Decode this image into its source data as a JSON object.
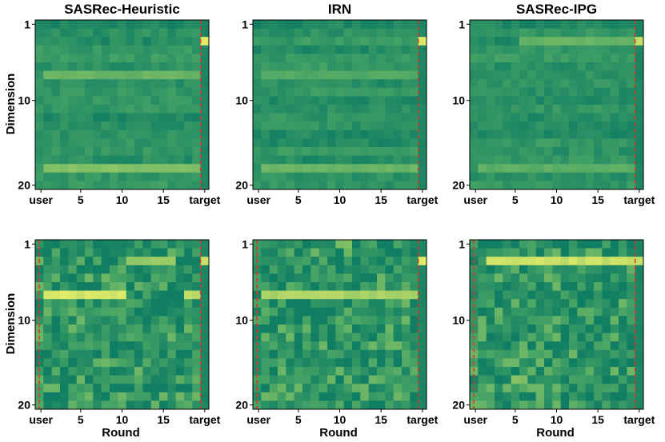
{
  "colors": {
    "colormap_low": "#0e7c63",
    "colormap_mid": "#4aa665",
    "colormap_high": "#f5f569",
    "marker_line": "#e8302a",
    "frame": "#000000"
  },
  "chart_data": {
    "type": "heatmap",
    "figure": "Heatmap grid: embedding dimension values across recommendation rounds",
    "rows": [
      "top",
      "bottom"
    ],
    "columns": [
      "SASRec-Heuristic",
      "IRN",
      "SASRec-IPG"
    ],
    "xlabel": "Round",
    "ylabel": "Dimension",
    "x_ticks": [
      {
        "label": "user",
        "col": 0.5
      },
      {
        "label": "5",
        "col": 5
      },
      {
        "label": "10",
        "col": 10
      },
      {
        "label": "15",
        "col": 15
      },
      {
        "label": "target",
        "col": 19.5
      }
    ],
    "y_ticks": [
      {
        "label": "1",
        "row": 1
      },
      {
        "label": "10",
        "row": 10
      },
      {
        "label": "20",
        "row": 20
      }
    ],
    "n_dims": 20,
    "marker_cols": [
      0.5,
      19.5
    ],
    "panels": [
      {
        "title": "SASRec-Heuristic",
        "row": 0,
        "col": 0,
        "ncols": 21,
        "left_marker": false,
        "right_marker": true,
        "highlights": [
          {
            "dim": 3,
            "cols": [
              20
            ],
            "v": 0.95
          },
          {
            "dim": 7,
            "cols": "1-19",
            "v": 0.62
          },
          {
            "dim": 18,
            "cols": "1-19",
            "v": 0.7
          }
        ],
        "seed": 11,
        "variance": 0.12
      },
      {
        "title": "IRN",
        "row": 0,
        "col": 1,
        "ncols": 21,
        "left_marker": false,
        "right_marker": true,
        "highlights": [
          {
            "dim": 3,
            "cols": [
              20
            ],
            "v": 0.95
          },
          {
            "dim": 7,
            "cols": "1-19",
            "v": 0.55
          },
          {
            "dim": 18,
            "cols": "1-19",
            "v": 0.62
          }
        ],
        "seed": 23,
        "variance": 0.12
      },
      {
        "title": "SASRec-IPG",
        "row": 0,
        "col": 2,
        "ncols": 21,
        "left_marker": false,
        "right_marker": true,
        "highlights": [
          {
            "dim": 3,
            "cols": [
              20
            ],
            "v": 0.95
          },
          {
            "dim": 3,
            "cols": "6-19",
            "v": 0.62
          },
          {
            "dim": 18,
            "cols": "1-19",
            "v": 0.58
          }
        ],
        "seed": 37,
        "variance": 0.12
      },
      {
        "title": "",
        "row": 1,
        "col": 0,
        "ncols": 21,
        "left_marker": true,
        "right_marker": true,
        "highlights": [
          {
            "dim": 7,
            "cols": "1-10",
            "v": 0.95
          },
          {
            "dim": 7,
            "cols": [
              18,
              19
            ],
            "v": 0.9
          },
          {
            "dim": 3,
            "cols": "11-16",
            "v": 0.75
          },
          {
            "dim": 3,
            "cols": [
              20
            ],
            "v": 0.95
          }
        ],
        "seed": 51,
        "variance": 0.35
      },
      {
        "title": "",
        "row": 1,
        "col": 1,
        "ncols": 21,
        "left_marker": true,
        "right_marker": true,
        "highlights": [
          {
            "dim": 7,
            "cols": "1-19",
            "v": 0.82
          },
          {
            "dim": 3,
            "cols": [
              20
            ],
            "v": 0.95
          },
          {
            "dim": 1,
            "cols": [
              10,
              11
            ],
            "v": 0.7
          }
        ],
        "seed": 67,
        "variance": 0.35
      },
      {
        "title": "",
        "row": 1,
        "col": 2,
        "ncols": 21,
        "left_marker": true,
        "right_marker": true,
        "highlights": [
          {
            "dim": 3,
            "cols": "2-20",
            "v": 0.92
          },
          {
            "dim": 17,
            "cols": [
              5,
              6
            ],
            "v": 0.7
          }
        ],
        "seed": 83,
        "variance": 0.35
      }
    ]
  }
}
